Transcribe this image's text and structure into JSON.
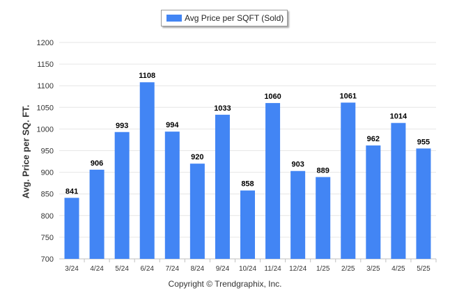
{
  "legend": {
    "label": "Avg Price per SQFT (Sold)"
  },
  "footer": {
    "copyright": "Copyright © Trendgraphix, Inc."
  },
  "chart_data": {
    "type": "bar",
    "ylabel": "Avg. Price per SQ. FT.",
    "xlabel": "",
    "ylim": [
      700,
      1200
    ],
    "yticks": [
      700,
      750,
      800,
      850,
      900,
      950,
      1000,
      1050,
      1100,
      1150,
      1200
    ],
    "grid": true,
    "legend_position": "top-center",
    "color": "#4285f4",
    "categories": [
      "3/24",
      "4/24",
      "5/24",
      "6/24",
      "7/24",
      "8/24",
      "9/24",
      "10/24",
      "11/24",
      "12/24",
      "1/25",
      "2/25",
      "3/25",
      "4/25",
      "5/25"
    ],
    "series": [
      {
        "name": "Avg Price per SQFT (Sold)",
        "values": [
          841,
          906,
          993,
          1108,
          994,
          920,
          1033,
          858,
          1060,
          903,
          889,
          1061,
          962,
          1014,
          955
        ]
      }
    ]
  }
}
